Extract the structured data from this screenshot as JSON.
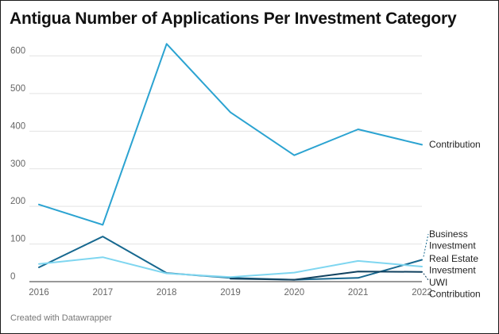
{
  "chart_data": {
    "type": "line",
    "title": "Antigua Number of Applications Per Investment Category",
    "x": [
      "2016",
      "2017",
      "2018",
      "2019",
      "2020",
      "2021",
      "2022"
    ],
    "ylim": [
      0,
      650
    ],
    "yticks": [
      0,
      100,
      200,
      300,
      400,
      500,
      600
    ],
    "grid": true,
    "legend": "line-end labels",
    "series": [
      {
        "name": "Contribution",
        "color": "#2ba3d1",
        "values": [
          205,
          151,
          632,
          450,
          336,
          405,
          364
        ]
      },
      {
        "name": "Business Investment",
        "color": "#17688f",
        "values": [
          38,
          120,
          23,
          10,
          5,
          10,
          58
        ]
      },
      {
        "name": "Real Estate Investment",
        "color": "#7fd6f0",
        "values": [
          47,
          65,
          22,
          12,
          24,
          55,
          40
        ]
      },
      {
        "name": "UWI Contribution",
        "color": "#10415f",
        "values": [
          null,
          null,
          null,
          8,
          5,
          27,
          26
        ]
      }
    ],
    "label_lines": [
      [
        "Contribution"
      ],
      [
        "Business",
        "Investment"
      ],
      [
        "Real Estate",
        "Investment"
      ],
      [
        "UWI",
        "Contribution"
      ]
    ]
  },
  "footer": "Created with Datawrapper"
}
